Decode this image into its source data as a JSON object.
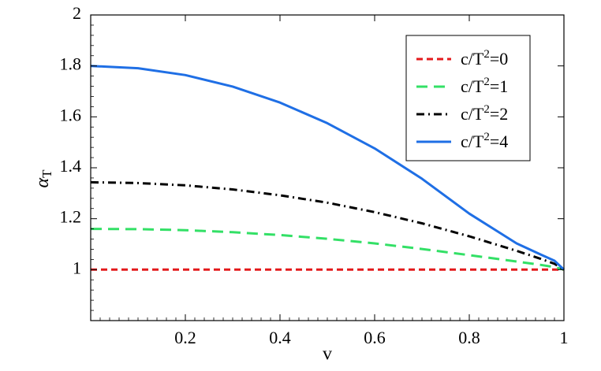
{
  "chart_data": {
    "type": "line",
    "xlabel": "v",
    "ylabel_main": "α",
    "ylabel_sub": "T",
    "xlim": [
      0,
      1
    ],
    "ylim": [
      0.8,
      2
    ],
    "x_ticks": [
      0.2,
      0.4,
      0.6,
      0.8,
      1
    ],
    "x_tick_labels": [
      "0.2",
      "0.4",
      "0.6",
      "0.8",
      "1"
    ],
    "y_ticks": [
      1,
      1.2,
      1.4,
      1.6,
      1.8,
      2
    ],
    "y_tick_labels": [
      "1",
      "1.2",
      "1.4",
      "1.6",
      "1.8",
      "2"
    ],
    "grid": false,
    "legend_position": "top-right",
    "x": [
      0,
      0.1,
      0.2,
      0.3,
      0.4,
      0.5,
      0.6,
      0.7,
      0.8,
      0.9,
      0.95,
      0.98,
      1
    ],
    "series": [
      {
        "name_prefix": "c/T",
        "name_exp": "2",
        "name_suffix": "=0",
        "color": "#e31a1c",
        "dash": "dashed-short",
        "values": [
          1,
          1,
          1,
          1,
          1,
          1,
          1,
          1,
          1,
          1,
          1,
          1,
          1
        ]
      },
      {
        "name_prefix": "c/T",
        "name_exp": "2",
        "name_suffix": "=1",
        "color": "#33e066",
        "dash": "dashed-long",
        "values": [
          1.16,
          1.159,
          1.155,
          1.147,
          1.136,
          1.121,
          1.103,
          1.081,
          1.057,
          1.032,
          1.019,
          1.01,
          1
        ]
      },
      {
        "name_prefix": "c/T",
        "name_exp": "2",
        "name_suffix": "=2",
        "color": "#000000",
        "dash": "dash-dot",
        "values": [
          1.343,
          1.34,
          1.331,
          1.315,
          1.292,
          1.263,
          1.226,
          1.182,
          1.131,
          1.074,
          1.043,
          1.023,
          1
        ]
      },
      {
        "name_prefix": "c/T",
        "name_exp": "2",
        "name_suffix": "=4",
        "color": "#1f6fe5",
        "dash": "solid",
        "values": [
          1.8,
          1.791,
          1.764,
          1.719,
          1.656,
          1.575,
          1.476,
          1.357,
          1.22,
          1.103,
          1.06,
          1.035,
          1
        ]
      }
    ]
  }
}
